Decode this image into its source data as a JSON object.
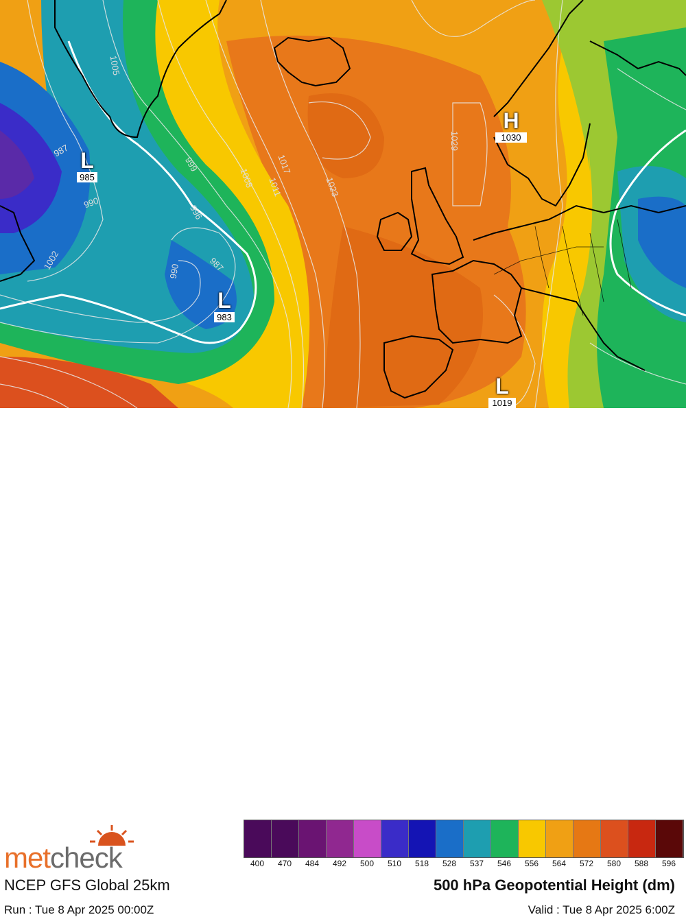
{
  "map": {
    "systems": [
      {
        "type": "L",
        "value": "985"
      },
      {
        "type": "L",
        "value": "983"
      },
      {
        "type": "H",
        "value": "1030"
      },
      {
        "type": "L",
        "value": "1019"
      }
    ],
    "isobar_labels": [
      "987",
      "990",
      "1002",
      "999",
      "996",
      "987",
      "990",
      "1005",
      "1008",
      "1011",
      "1017",
      "1023",
      "1029"
    ]
  },
  "footer": {
    "logo_part1": "met",
    "logo_part2": "check",
    "model": "NCEP GFS Global 25km",
    "run": "Run : Tue 8 Apr 2025 00:00Z",
    "title": "500 hPa Geopotential Height (dm)",
    "valid": "Valid : Tue 8 Apr 2025 6:00Z"
  },
  "scale": {
    "labels": [
      "400",
      "470",
      "484",
      "492",
      "500",
      "510",
      "518",
      "528",
      "537",
      "546",
      "556",
      "564",
      "572",
      "580",
      "588",
      "596"
    ],
    "colors": [
      "#4a0a5a",
      "#4a0a5a",
      "#6a1472",
      "#902890",
      "#c84cc8",
      "#3a2cc8",
      "#1414b4",
      "#1a6ec8",
      "#1e9eb0",
      "#1eb45a",
      "#f8c800",
      "#f0a014",
      "#e67814",
      "#dc501e",
      "#c82810",
      "#5a0808"
    ]
  }
}
